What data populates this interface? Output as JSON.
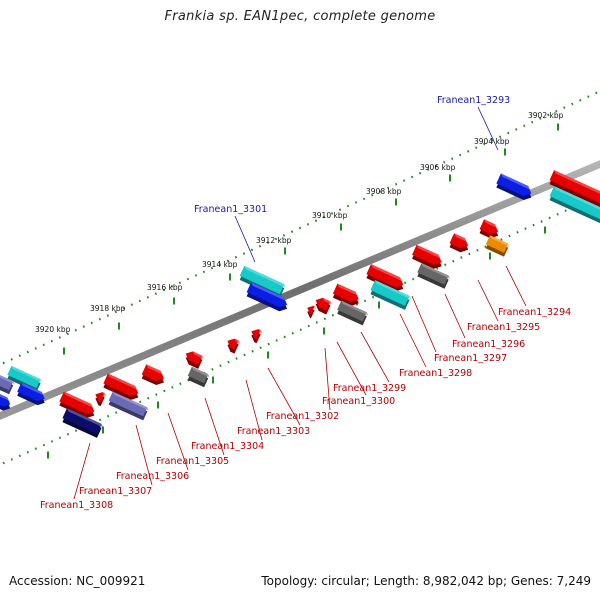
{
  "title": "Frankia sp. EAN1pec, complete genome",
  "footer": {
    "accession": "Accession: NC_009921",
    "summary": "Topology: circular; Length: 8,982,042 bp; Genes: 7,249"
  },
  "colors": {
    "backbone": "#7a7a7a",
    "ruler_dots": "#1f8a1f",
    "top_label": "#1a1aa8",
    "bottom_label": "#b30000",
    "red": "#e60000",
    "blue": "#0a1ee6",
    "cyan": "#17c9c9",
    "gray": "#666666",
    "orange": "#ee8a00",
    "navy": "#0c0c6a",
    "slate": "#6a6ab8",
    "pale": "#7a7ac0"
  },
  "ruler_ticks": [
    "3902 kbp",
    "3904 kbp",
    "3906 kbp",
    "3908 kbp",
    "3910 kbp",
    "3912 kbp",
    "3914 kbp",
    "3916 kbp",
    "3918 kbp",
    "3920 kbp"
  ],
  "top_labels": [
    "Franean1_3293",
    "Franean1_3301"
  ],
  "bottom_labels": [
    "Franean1_3294",
    "Franean1_3295",
    "Franean1_3296",
    "Franean1_3297",
    "Franean1_3298",
    "Franean1_3299",
    "Franean1_3300",
    "Franean1_3302",
    "Franean1_3303",
    "Franean1_3304",
    "Franean1_3305",
    "Franean1_3306",
    "Franean1_3307",
    "Franean1_3308"
  ]
}
